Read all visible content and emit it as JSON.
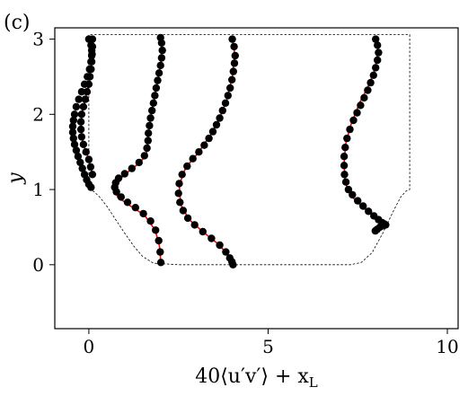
{
  "chart_data": {
    "type": "line",
    "panel_label": "(c)",
    "xlabel_parts": {
      "main": "40⟨u′v′⟩ + x",
      "sub": "L"
    },
    "ylabel": "y",
    "xlim": [
      -0.95,
      10.3
    ],
    "ylim": [
      -0.85,
      3.15
    ],
    "xticks": [
      0,
      5,
      10
    ],
    "yticks": [
      0,
      1,
      2,
      3
    ],
    "grid": false,
    "colors": {
      "points": "#000000",
      "fit": "#ff0000",
      "boundary": "#000000"
    },
    "boundary": {
      "x": [
        0.0,
        0.06,
        0.15,
        0.3,
        0.5,
        0.75,
        1.0,
        1.25,
        1.5,
        1.8,
        2.5,
        5.0,
        7.3,
        7.6,
        7.9,
        8.2,
        8.5,
        8.7,
        8.85,
        8.95,
        8.95,
        0.0,
        0.0
      ],
      "y": [
        1.0,
        0.995,
        0.97,
        0.9,
        0.78,
        0.6,
        0.42,
        0.25,
        0.11,
        0.02,
        0.0,
        0.0,
        0.0,
        0.03,
        0.16,
        0.42,
        0.72,
        0.9,
        0.98,
        1.0,
        3.06,
        3.06,
        1.0
      ]
    },
    "series": [
      {
        "x": [
          0.1,
          0.1,
          0.09,
          0.08,
          0.06,
          0.03,
          0.0,
          -0.05,
          -0.1,
          -0.15,
          -0.2,
          -0.22,
          -0.22,
          -0.2,
          -0.15,
          -0.08,
          0.0,
          0.05,
          0.1
        ],
        "y": [
          3.0,
          2.9,
          2.8,
          2.7,
          2.6,
          2.5,
          2.4,
          2.3,
          2.2,
          2.1,
          2.0,
          1.9,
          1.8,
          1.7,
          1.6,
          1.5,
          1.4,
          1.3,
          1.2
        ]
      },
      {
        "x": [
          0.0,
          0.06,
          0.08,
          0.08,
          0.06,
          0.02,
          -0.04,
          -0.12,
          -0.2,
          -0.28,
          -0.35,
          -0.4,
          -0.43,
          -0.45,
          -0.45,
          -0.43,
          -0.4,
          -0.35,
          -0.3,
          -0.24,
          -0.18,
          -0.12,
          -0.06,
          0.0,
          0.06
        ],
        "y": [
          3.0,
          2.92,
          2.85,
          2.78,
          2.7,
          2.6,
          2.5,
          2.4,
          2.3,
          2.2,
          2.1,
          2.0,
          1.92,
          1.84,
          1.76,
          1.68,
          1.6,
          1.52,
          1.44,
          1.36,
          1.28,
          1.2,
          1.13,
          1.07,
          1.03
        ]
      },
      {
        "x": [
          2.0,
          2.03,
          2.05,
          2.03,
          2.0,
          1.96,
          1.92,
          1.88,
          1.84,
          1.8,
          1.76,
          1.72,
          1.69,
          1.66,
          1.65,
          1.62,
          1.55,
          1.4,
          1.2,
          1.0,
          0.83,
          0.75,
          0.72,
          0.77,
          0.9,
          1.08,
          1.3,
          1.52,
          1.72,
          1.86,
          1.95,
          1.99,
          2.01
        ],
        "y": [
          3.02,
          2.95,
          2.85,
          2.75,
          2.65,
          2.55,
          2.45,
          2.35,
          2.25,
          2.15,
          2.05,
          1.95,
          1.85,
          1.75,
          1.65,
          1.55,
          1.45,
          1.36,
          1.28,
          1.21,
          1.15,
          1.09,
          1.03,
          0.97,
          0.9,
          0.83,
          0.76,
          0.68,
          0.58,
          0.46,
          0.32,
          0.17,
          0.03
        ]
      },
      {
        "x": [
          4.0,
          4.05,
          4.08,
          4.06,
          4.03,
          3.99,
          3.94,
          3.88,
          3.81,
          3.73,
          3.65,
          3.56,
          3.46,
          3.35,
          3.22,
          3.07,
          2.9,
          2.74,
          2.6,
          2.52,
          2.5,
          2.54,
          2.63,
          2.76,
          2.95,
          3.18,
          3.42,
          3.65,
          3.82,
          3.93,
          3.99,
          4.02
        ],
        "y": [
          3.0,
          2.9,
          2.78,
          2.68,
          2.57,
          2.46,
          2.35,
          2.25,
          2.15,
          2.05,
          1.95,
          1.86,
          1.77,
          1.68,
          1.59,
          1.5,
          1.41,
          1.31,
          1.2,
          1.08,
          0.95,
          0.83,
          0.72,
          0.62,
          0.53,
          0.44,
          0.35,
          0.26,
          0.17,
          0.09,
          0.04,
          0.0
        ]
      },
      {
        "x": [
          8.0,
          8.05,
          8.08,
          8.05,
          8.0,
          7.94,
          7.86,
          7.78,
          7.68,
          7.58,
          7.48,
          7.38,
          7.28,
          7.2,
          7.15,
          7.12,
          7.12,
          7.13,
          7.17,
          7.24,
          7.35,
          7.5,
          7.65,
          7.8,
          7.95,
          8.08,
          8.18,
          8.25,
          8.28,
          8.22,
          8.12,
          8.04,
          7.99
        ],
        "y": [
          3.0,
          2.92,
          2.82,
          2.72,
          2.62,
          2.52,
          2.42,
          2.32,
          2.22,
          2.12,
          2.02,
          1.92,
          1.8,
          1.68,
          1.56,
          1.44,
          1.32,
          1.2,
          1.1,
          1.0,
          0.93,
          0.85,
          0.78,
          0.71,
          0.65,
          0.6,
          0.56,
          0.54,
          0.53,
          0.52,
          0.5,
          0.47,
          0.45
        ]
      }
    ],
    "fit_curves": [
      {
        "x": [
          0.1,
          0.08,
          0.02,
          -0.1,
          -0.2,
          -0.22,
          -0.15,
          0.0,
          0.1
        ],
        "y": [
          3.0,
          2.75,
          2.45,
          2.2,
          2.0,
          1.8,
          1.6,
          1.4,
          1.2
        ]
      },
      {
        "x": [
          2.0,
          2.04,
          2.0,
          1.9,
          1.78,
          1.68,
          1.65,
          1.6,
          1.35,
          0.95,
          0.74,
          0.8,
          1.1,
          1.55,
          1.85,
          1.97,
          2.01
        ],
        "y": [
          3.02,
          2.85,
          2.65,
          2.4,
          2.1,
          1.85,
          1.65,
          1.45,
          1.33,
          1.18,
          1.03,
          0.9,
          0.8,
          0.66,
          0.46,
          0.25,
          0.03
        ]
      },
      {
        "x": [
          4.0,
          4.07,
          4.0,
          3.85,
          3.65,
          3.4,
          3.07,
          2.7,
          2.52,
          2.56,
          2.8,
          3.2,
          3.65,
          3.93,
          4.02
        ],
        "y": [
          3.0,
          2.8,
          2.5,
          2.2,
          1.95,
          1.73,
          1.5,
          1.29,
          1.06,
          0.8,
          0.6,
          0.43,
          0.26,
          0.09,
          0.0
        ]
      },
      {
        "x": [
          8.0,
          8.07,
          7.98,
          7.8,
          7.55,
          7.3,
          7.16,
          7.12,
          7.14,
          7.2,
          7.35,
          7.6,
          7.9,
          8.12,
          8.26,
          8.28,
          8.2,
          8.05,
          7.99
        ],
        "y": [
          3.0,
          2.85,
          2.6,
          2.38,
          2.15,
          1.85,
          1.6,
          1.35,
          1.15,
          1.02,
          0.9,
          0.78,
          0.66,
          0.58,
          0.54,
          0.53,
          0.51,
          0.47,
          0.45
        ]
      }
    ]
  }
}
